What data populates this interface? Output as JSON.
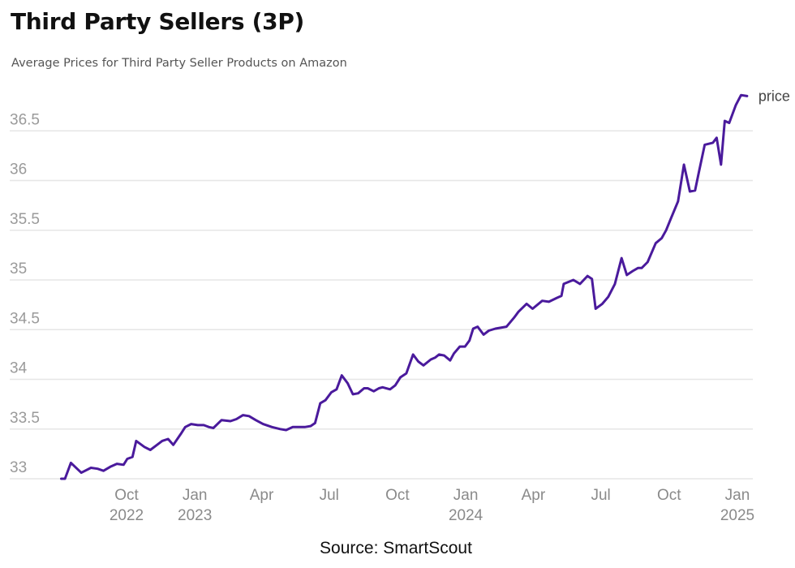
{
  "header": {
    "title": "Third Party Sellers (3P)",
    "subtitle": "Average Prices for Third Party Seller Products on Amazon"
  },
  "footer": {
    "source": "Source: SmartScout"
  },
  "colors": {
    "line": "#4a1a9c",
    "grid": "#e6e6e6"
  },
  "chart_data": {
    "type": "line",
    "title": "Third Party Sellers (3P)",
    "subtitle": "Average Prices for Third Party Seller Products on Amazon",
    "xlabel": "",
    "ylabel": "",
    "ylim": [
      33,
      36.9
    ],
    "xlim": [
      "2022-07-01",
      "2025-01-10"
    ],
    "grid": true,
    "legend": "direct label at line end (top-right)",
    "yticks": [
      {
        "value": 33,
        "label": "33"
      },
      {
        "value": 33.5,
        "label": "33.5"
      },
      {
        "value": 34,
        "label": "34"
      },
      {
        "value": 34.5,
        "label": "34.5"
      },
      {
        "value": 35,
        "label": "35"
      },
      {
        "value": 35.5,
        "label": "35.5"
      },
      {
        "value": 36,
        "label": "36"
      },
      {
        "value": 36.5,
        "label": "36.5"
      }
    ],
    "xticks": [
      {
        "date": "2022-10-01",
        "label": "Oct",
        "sublabel": "2022"
      },
      {
        "date": "2023-01-01",
        "label": "Jan",
        "sublabel": "2023"
      },
      {
        "date": "2023-04-01",
        "label": "Apr",
        "sublabel": ""
      },
      {
        "date": "2023-07-01",
        "label": "Jul",
        "sublabel": ""
      },
      {
        "date": "2023-10-01",
        "label": "Oct",
        "sublabel": ""
      },
      {
        "date": "2024-01-01",
        "label": "Jan",
        "sublabel": "2024"
      },
      {
        "date": "2024-04-01",
        "label": "Apr",
        "sublabel": ""
      },
      {
        "date": "2024-07-01",
        "label": "Jul",
        "sublabel": ""
      },
      {
        "date": "2024-10-01",
        "label": "Oct",
        "sublabel": ""
      },
      {
        "date": "2025-01-01",
        "label": "Jan",
        "sublabel": "2025"
      }
    ],
    "series": [
      {
        "name": "price",
        "points": [
          [
            "2022-07-05",
            33.0
          ],
          [
            "2022-07-10",
            33.0
          ],
          [
            "2022-07-18",
            33.16
          ],
          [
            "2022-08-01",
            33.06
          ],
          [
            "2022-08-14",
            33.11
          ],
          [
            "2022-08-23",
            33.1
          ],
          [
            "2022-08-31",
            33.08
          ],
          [
            "2022-09-09",
            33.12
          ],
          [
            "2022-09-18",
            33.15
          ],
          [
            "2022-09-27",
            33.14
          ],
          [
            "2022-10-02",
            33.2
          ],
          [
            "2022-10-09",
            33.22
          ],
          [
            "2022-10-14",
            33.38
          ],
          [
            "2022-10-25",
            33.32
          ],
          [
            "2022-11-02",
            33.29
          ],
          [
            "2022-11-11",
            33.34
          ],
          [
            "2022-11-18",
            33.38
          ],
          [
            "2022-11-26",
            33.4
          ],
          [
            "2022-12-03",
            33.34
          ],
          [
            "2022-12-13",
            33.45
          ],
          [
            "2022-12-19",
            33.52
          ],
          [
            "2022-12-27",
            33.55
          ],
          [
            "2023-01-05",
            33.54
          ],
          [
            "2023-01-13",
            33.54
          ],
          [
            "2023-01-20",
            33.52
          ],
          [
            "2023-01-26",
            33.51
          ],
          [
            "2023-02-06",
            33.59
          ],
          [
            "2023-02-18",
            33.58
          ],
          [
            "2023-02-26",
            33.6
          ],
          [
            "2023-03-07",
            33.64
          ],
          [
            "2023-03-15",
            33.63
          ],
          [
            "2023-03-24",
            33.59
          ],
          [
            "2023-04-03",
            33.55
          ],
          [
            "2023-04-15",
            33.52
          ],
          [
            "2023-04-26",
            33.5
          ],
          [
            "2023-05-04",
            33.49
          ],
          [
            "2023-05-13",
            33.52
          ],
          [
            "2023-05-20",
            33.52
          ],
          [
            "2023-05-29",
            33.52
          ],
          [
            "2023-06-06",
            33.53
          ],
          [
            "2023-06-12",
            33.56
          ],
          [
            "2023-06-19",
            33.76
          ],
          [
            "2023-06-26",
            33.79
          ],
          [
            "2023-07-04",
            33.87
          ],
          [
            "2023-07-11",
            33.9
          ],
          [
            "2023-07-18",
            34.04
          ],
          [
            "2023-07-26",
            33.96
          ],
          [
            "2023-08-02",
            33.85
          ],
          [
            "2023-08-09",
            33.86
          ],
          [
            "2023-08-17",
            33.91
          ],
          [
            "2023-08-22",
            33.91
          ],
          [
            "2023-08-30",
            33.88
          ],
          [
            "2023-09-06",
            33.91
          ],
          [
            "2023-09-11",
            33.92
          ],
          [
            "2023-09-21",
            33.9
          ],
          [
            "2023-09-28",
            33.94
          ],
          [
            "2023-10-05",
            34.02
          ],
          [
            "2023-10-13",
            34.06
          ],
          [
            "2023-10-22",
            34.25
          ],
          [
            "2023-10-29",
            34.18
          ],
          [
            "2023-11-05",
            34.14
          ],
          [
            "2023-11-15",
            34.2
          ],
          [
            "2023-11-21",
            34.22
          ],
          [
            "2023-11-26",
            34.25
          ],
          [
            "2023-12-03",
            34.24
          ],
          [
            "2023-12-11",
            34.19
          ],
          [
            "2023-12-16",
            34.26
          ],
          [
            "2023-12-24",
            34.33
          ],
          [
            "2023-12-31",
            34.33
          ],
          [
            "2024-01-06",
            34.39
          ],
          [
            "2024-01-11",
            34.51
          ],
          [
            "2024-01-17",
            34.53
          ],
          [
            "2024-01-25",
            34.45
          ],
          [
            "2024-02-01",
            34.49
          ],
          [
            "2024-02-10",
            34.51
          ],
          [
            "2024-02-25",
            34.53
          ],
          [
            "2024-03-06",
            34.62
          ],
          [
            "2024-03-12",
            34.68
          ],
          [
            "2024-03-23",
            34.76
          ],
          [
            "2024-03-31",
            34.71
          ],
          [
            "2024-04-13",
            34.79
          ],
          [
            "2024-04-22",
            34.78
          ],
          [
            "2024-05-03",
            34.82
          ],
          [
            "2024-05-09",
            34.84
          ],
          [
            "2024-05-12",
            34.96
          ],
          [
            "2024-05-25",
            35.0
          ],
          [
            "2024-06-03",
            34.96
          ],
          [
            "2024-06-13",
            35.04
          ],
          [
            "2024-06-19",
            35.01
          ],
          [
            "2024-06-24",
            34.71
          ],
          [
            "2024-07-03",
            34.76
          ],
          [
            "2024-07-11",
            34.83
          ],
          [
            "2024-07-20",
            34.96
          ],
          [
            "2024-07-29",
            35.22
          ],
          [
            "2024-08-05",
            35.05
          ],
          [
            "2024-08-13",
            35.09
          ],
          [
            "2024-08-20",
            35.12
          ],
          [
            "2024-08-25",
            35.12
          ],
          [
            "2024-09-02",
            35.18
          ],
          [
            "2024-09-13",
            35.37
          ],
          [
            "2024-09-21",
            35.42
          ],
          [
            "2024-09-27",
            35.5
          ],
          [
            "2024-10-03",
            35.61
          ],
          [
            "2024-10-13",
            35.79
          ],
          [
            "2024-10-21",
            36.16
          ],
          [
            "2024-10-29",
            35.89
          ],
          [
            "2024-11-05",
            35.9
          ],
          [
            "2024-11-10",
            36.08
          ],
          [
            "2024-11-18",
            36.36
          ],
          [
            "2024-11-29",
            36.38
          ],
          [
            "2024-12-04",
            36.43
          ],
          [
            "2024-12-10",
            36.16
          ],
          [
            "2024-12-15",
            36.6
          ],
          [
            "2024-12-21",
            36.58
          ],
          [
            "2024-12-30",
            36.76
          ],
          [
            "2025-01-06",
            36.86
          ],
          [
            "2025-01-14",
            36.85
          ]
        ]
      }
    ]
  }
}
